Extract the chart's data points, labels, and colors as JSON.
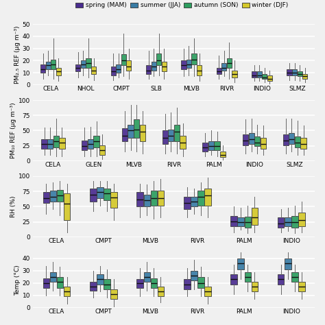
{
  "colors": {
    "spring": "#4a2c8f",
    "summer": "#3a7ca5",
    "autumn": "#2d9e5f",
    "winter": "#d4c82a"
  },
  "legend_labels": [
    "spring (MAM)",
    "summer (JJA)",
    "autumn (SON)",
    "winter (DJF)"
  ],
  "subplot1": {
    "ylabel": "PM₂.₅ REF (μg m⁻³)",
    "ylim": [
      0,
      50
    ],
    "yticks": [
      0,
      10,
      20,
      30,
      40,
      50
    ],
    "stations": [
      "CELA",
      "NHOL",
      "CMPT",
      "SLB",
      "MLVB",
      "RIVR",
      "INDIO",
      "SLMZ"
    ],
    "data": {
      "CELA": {
        "spring": [
          5,
          10,
          13,
          17,
          26
        ],
        "summer": [
          8,
          13,
          16,
          19,
          28
        ],
        "autumn": [
          5,
          13,
          17,
          21,
          38
        ],
        "winter": [
          3,
          8,
          11,
          14,
          22
        ]
      },
      "NHOL": {
        "spring": [
          6,
          11,
          14,
          17,
          27
        ],
        "summer": [
          8,
          14,
          17,
          20,
          28
        ],
        "autumn": [
          6,
          14,
          18,
          22,
          38
        ],
        "winter": [
          4,
          9,
          12,
          15,
          22
        ]
      },
      "CMPT": {
        "spring": [
          4,
          8,
          11,
          15,
          26
        ],
        "summer": [
          6,
          10,
          13,
          17,
          26
        ],
        "autumn": [
          7,
          16,
          20,
          25,
          42
        ],
        "winter": [
          5,
          12,
          15,
          20,
          30
        ]
      },
      "SLB": {
        "spring": [
          5,
          9,
          12,
          16,
          28
        ],
        "summer": [
          7,
          12,
          15,
          19,
          30
        ],
        "autumn": [
          8,
          16,
          20,
          26,
          42
        ],
        "winter": [
          5,
          11,
          15,
          19,
          30
        ]
      },
      "MLVB": {
        "spring": [
          7,
          13,
          16,
          20,
          30
        ],
        "summer": [
          8,
          14,
          17,
          21,
          32
        ],
        "autumn": [
          7,
          17,
          21,
          26,
          38
        ],
        "winter": [
          3,
          8,
          12,
          16,
          26
        ]
      },
      "RIVR": {
        "spring": [
          5,
          9,
          11,
          14,
          24
        ],
        "summer": [
          7,
          12,
          14,
          18,
          28
        ],
        "autumn": [
          5,
          14,
          18,
          22,
          35
        ],
        "winter": [
          2,
          6,
          9,
          12,
          20
        ]
      },
      "INDIO": {
        "spring": [
          3,
          6,
          8,
          11,
          16
        ],
        "summer": [
          3,
          6,
          8,
          11,
          16
        ],
        "autumn": [
          2,
          5,
          6,
          9,
          14
        ],
        "winter": [
          1,
          3,
          5,
          8,
          12
        ]
      },
      "SLMZ": {
        "spring": [
          4,
          8,
          10,
          13,
          18
        ],
        "summer": [
          4,
          8,
          10,
          13,
          18
        ],
        "autumn": [
          3,
          7,
          9,
          11,
          16
        ],
        "winter": [
          2,
          5,
          7,
          9,
          14
        ]
      }
    }
  },
  "subplot2": {
    "ylabel": "PM₁₀ REF (μg m⁻³)",
    "ylim": [
      0,
      100
    ],
    "yticks": [
      0,
      25,
      50,
      75,
      100
    ],
    "stations": [
      "CELA",
      "GLEN",
      "MLVB",
      "RIVR",
      "PALM",
      "INDIO",
      "SLMZ"
    ],
    "data": {
      "CELA": {
        "spring": [
          10,
          20,
          28,
          36,
          55
        ],
        "summer": [
          10,
          20,
          28,
          36,
          55
        ],
        "autumn": [
          8,
          22,
          32,
          42,
          70
        ],
        "winter": [
          8,
          20,
          30,
          38,
          55
        ]
      },
      "GLEN": {
        "spring": [
          8,
          18,
          25,
          34,
          55
        ],
        "summer": [
          8,
          20,
          28,
          36,
          56
        ],
        "autumn": [
          8,
          22,
          32,
          42,
          65
        ],
        "winter": [
          3,
          10,
          18,
          26,
          44
        ]
      },
      "MLVB": {
        "spring": [
          15,
          32,
          42,
          54,
          82
        ],
        "summer": [
          18,
          38,
          50,
          60,
          92
        ],
        "autumn": [
          15,
          38,
          52,
          68,
          92
        ],
        "winter": [
          12,
          32,
          48,
          60,
          82
        ]
      },
      "RIVR": {
        "spring": [
          12,
          28,
          38,
          50,
          78
        ],
        "summer": [
          15,
          32,
          42,
          52,
          80
        ],
        "autumn": [
          12,
          32,
          48,
          60,
          88
        ],
        "winter": [
          8,
          20,
          30,
          42,
          62
        ]
      },
      "PALM": {
        "spring": [
          8,
          16,
          22,
          30,
          46
        ],
        "summer": [
          10,
          18,
          24,
          32,
          50
        ],
        "autumn": [
          8,
          18,
          24,
          32,
          48
        ],
        "winter": [
          2,
          6,
          10,
          16,
          26
        ]
      },
      "INDIO": {
        "spring": [
          12,
          26,
          34,
          44,
          68
        ],
        "summer": [
          15,
          28,
          36,
          46,
          70
        ],
        "autumn": [
          12,
          24,
          30,
          40,
          60
        ],
        "winter": [
          10,
          20,
          28,
          38,
          58
        ]
      },
      "SLMZ": {
        "spring": [
          12,
          26,
          34,
          44,
          70
        ],
        "summer": [
          15,
          28,
          36,
          46,
          70
        ],
        "autumn": [
          10,
          22,
          30,
          40,
          66
        ],
        "winter": [
          10,
          20,
          28,
          38,
          58
        ]
      }
    }
  },
  "subplot3": {
    "ylabel": "RH (%)",
    "ylim": [
      0,
      100
    ],
    "yticks": [
      0,
      25,
      50,
      75,
      100
    ],
    "stations": [
      "CELA",
      "CMPT",
      "MLVB",
      "RIVR",
      "PALM",
      "INDIO"
    ],
    "data": {
      "CELA": {
        "spring": [
          38,
          56,
          64,
          74,
          88
        ],
        "summer": [
          46,
          58,
          66,
          76,
          90
        ],
        "autumn": [
          36,
          58,
          68,
          78,
          92
        ],
        "winter": [
          8,
          28,
          55,
          72,
          88
        ]
      },
      "CMPT": {
        "spring": [
          42,
          58,
          70,
          80,
          92
        ],
        "summer": [
          52,
          64,
          74,
          82,
          92
        ],
        "autumn": [
          42,
          60,
          72,
          80,
          92
        ],
        "winter": [
          28,
          48,
          65,
          74,
          88
        ]
      },
      "MLVB": {
        "spring": [
          32,
          50,
          62,
          74,
          88
        ],
        "summer": [
          36,
          50,
          60,
          70,
          86
        ],
        "autumn": [
          30,
          52,
          64,
          76,
          92
        ],
        "winter": [
          32,
          52,
          64,
          76,
          95
        ]
      },
      "RIVR": {
        "spring": [
          32,
          46,
          56,
          66,
          82
        ],
        "summer": [
          38,
          50,
          58,
          66,
          80
        ],
        "autumn": [
          36,
          52,
          66,
          76,
          90
        ],
        "winter": [
          32,
          52,
          68,
          80,
          98
        ]
      },
      "PALM": {
        "spring": [
          8,
          18,
          26,
          35,
          50
        ],
        "summer": [
          12,
          18,
          24,
          32,
          48
        ],
        "autumn": [
          6,
          16,
          24,
          34,
          52
        ],
        "winter": [
          8,
          20,
          32,
          48,
          66
        ]
      },
      "INDIO": {
        "spring": [
          8,
          16,
          22,
          32,
          46
        ],
        "summer": [
          10,
          18,
          24,
          32,
          48
        ],
        "autumn": [
          6,
          15,
          25,
          35,
          52
        ],
        "winter": [
          8,
          18,
          28,
          40,
          58
        ]
      }
    }
  },
  "subplot4": {
    "ylabel": "Temp (°C)",
    "ylim": [
      0,
      45
    ],
    "yticks": [
      0,
      10,
      20,
      30,
      40
    ],
    "stations": [
      "CELA",
      "CMPT",
      "MLVB",
      "RIVR",
      "PALM",
      "INDIO"
    ],
    "data": {
      "CELA": {
        "spring": [
          10,
          16,
          20,
          24,
          34
        ],
        "summer": [
          14,
          21,
          25,
          29,
          37
        ],
        "autumn": [
          10,
          16,
          21,
          25,
          33
        ],
        "winter": [
          3,
          9,
          13,
          17,
          25
        ]
      },
      "CMPT": {
        "spring": [
          8,
          14,
          17,
          21,
          30
        ],
        "summer": [
          13,
          19,
          23,
          27,
          34
        ],
        "autumn": [
          8,
          15,
          19,
          23,
          31
        ],
        "winter": [
          1,
          7,
          11,
          15,
          23
        ]
      },
      "MLVB": {
        "spring": [
          9,
          16,
          20,
          23,
          32
        ],
        "summer": [
          14,
          21,
          25,
          29,
          37
        ],
        "autumn": [
          9,
          16,
          20,
          24,
          32
        ],
        "winter": [
          4,
          9,
          13,
          17,
          25
        ]
      },
      "RIVR": {
        "spring": [
          9,
          15,
          19,
          23,
          32
        ],
        "summer": [
          15,
          22,
          26,
          30,
          39
        ],
        "autumn": [
          9,
          16,
          20,
          25,
          33
        ],
        "winter": [
          3,
          9,
          13,
          17,
          25
        ]
      },
      "PALM": {
        "spring": [
          11,
          19,
          23,
          27,
          35
        ],
        "summer": [
          23,
          31,
          36,
          40,
          45
        ],
        "autumn": [
          13,
          21,
          25,
          29,
          35
        ],
        "winter": [
          7,
          13,
          17,
          21,
          29
        ]
      },
      "INDIO": {
        "spring": [
          11,
          19,
          23,
          27,
          35
        ],
        "summer": [
          23,
          31,
          36,
          40,
          45
        ],
        "autumn": [
          13,
          21,
          25,
          29,
          35
        ],
        "winter": [
          7,
          13,
          17,
          21,
          29
        ]
      }
    }
  },
  "panel_bg": "#f0f0f0",
  "fig_bg": "#f0f0f0",
  "grid_color": "#ffffff",
  "box_width": 0.14,
  "linewidth": 0.7,
  "whisker_color": "#666666",
  "median_color": "#111111",
  "edge_color": "#444444"
}
